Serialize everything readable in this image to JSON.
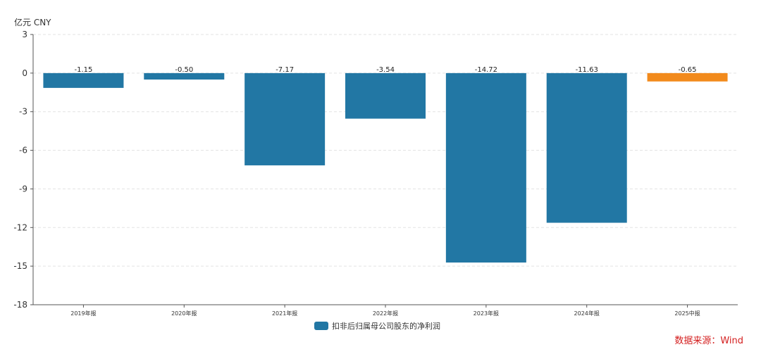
{
  "chart_data": {
    "type": "bar",
    "unit_label": "亿元  CNY",
    "categories": [
      "2019年报",
      "2020年报",
      "2021年报",
      "2022年报",
      "2023年报",
      "2024年报",
      "2025中报"
    ],
    "series": [
      {
        "name": "扣非后归属母公司股东的净利润",
        "values": [
          -1.15,
          -0.5,
          -7.17,
          -3.54,
          -14.72,
          -11.63,
          -0.65
        ],
        "value_labels": [
          "-1.15",
          "-0.50",
          "-7.17",
          "-3.54",
          "-14.72",
          "-11.63",
          "-0.65"
        ],
        "color": "#2277a4",
        "highlight_color": "#f28a1c",
        "highlight_index": 6
      }
    ],
    "ylim": [
      -18,
      3
    ],
    "yticks": [
      3,
      0,
      -3,
      -6,
      -9,
      -12,
      -15,
      -18
    ],
    "grid": true,
    "legend": "bottom-center",
    "source": "数据来源：Wind"
  }
}
